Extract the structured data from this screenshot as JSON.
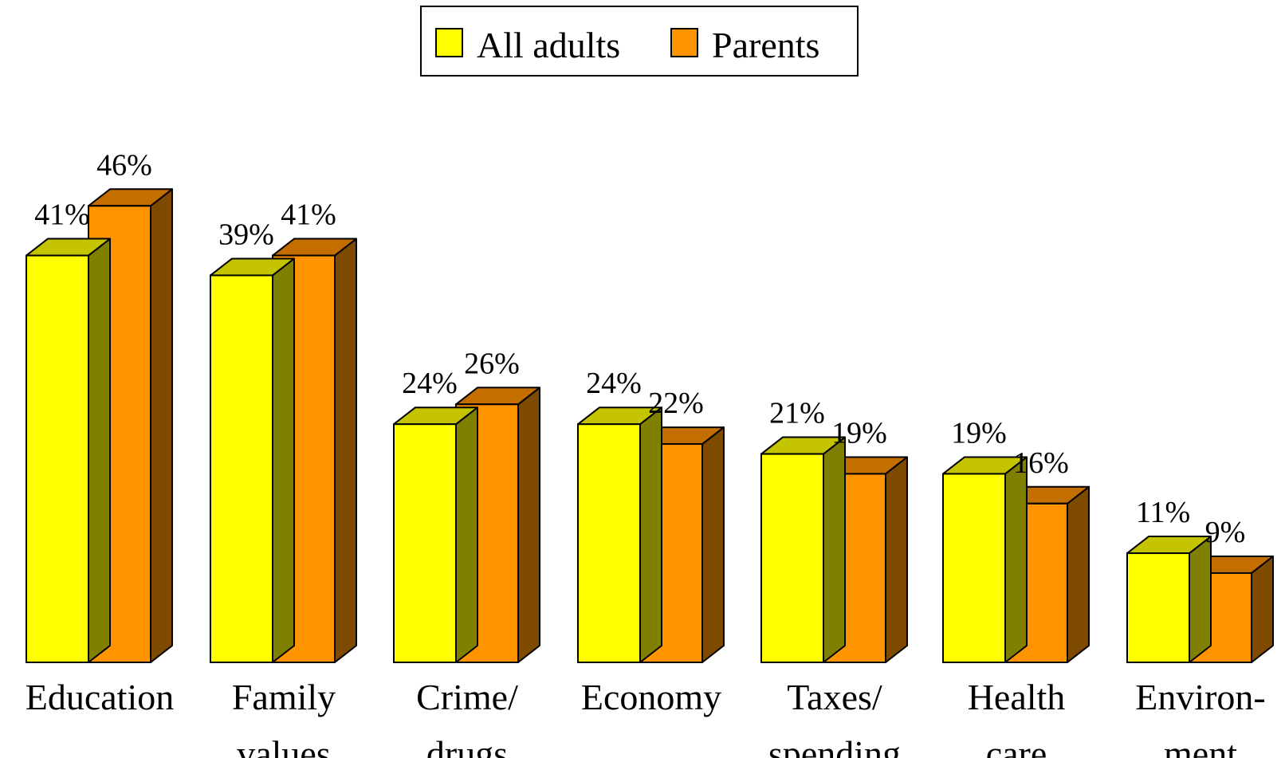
{
  "colors": {
    "all_adults_front": "#FFFF00",
    "all_adults_top": "#C4C400",
    "all_adults_side": "#808000",
    "parents_front": "#FF9400",
    "parents_top": "#C46E00",
    "parents_side": "#7D4A00",
    "outline": "#000000"
  },
  "chart_data": {
    "type": "bar",
    "categories": [
      [
        "Education"
      ],
      [
        "Family",
        "values"
      ],
      [
        "Crime/",
        "drugs"
      ],
      [
        "Economy"
      ],
      [
        "Taxes/",
        "spending"
      ],
      [
        "Health",
        "care"
      ],
      [
        "Environ-",
        "ment"
      ]
    ],
    "series": [
      {
        "name": "All adults",
        "values": [
          41,
          39,
          24,
          24,
          21,
          19,
          11
        ],
        "labels": [
          "41%",
          "39%",
          "24%",
          "24%",
          "21%",
          "19%",
          "11%"
        ]
      },
      {
        "name": "Parents",
        "values": [
          46,
          41,
          26,
          22,
          19,
          16,
          9
        ],
        "labels": [
          "46%",
          "41%",
          "26%",
          "22%",
          "19%",
          "16%",
          "9%"
        ]
      }
    ],
    "legend_position": "top-center",
    "grid": false,
    "style": "3d-clustered-bar"
  }
}
